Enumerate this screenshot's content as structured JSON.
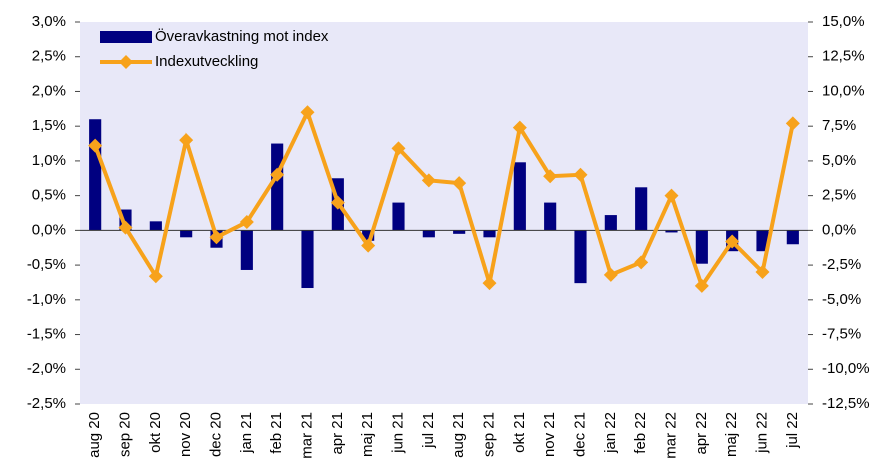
{
  "chart_data": {
    "type": "bar-line",
    "categories": [
      "aug 20",
      "sep 20",
      "okt 20",
      "nov 20",
      "dec 20",
      "jan 21",
      "feb 21",
      "mar 21",
      "apr 21",
      "maj 21",
      "jun 21",
      "jul 21",
      "aug 21",
      "sep 21",
      "okt 21",
      "nov 21",
      "dec 21",
      "jan 22",
      "feb 22",
      "mar 22",
      "apr 22",
      "maj 22",
      "jun 22",
      "jul 22"
    ],
    "series": [
      {
        "name": "Överavkastning mot index",
        "type": "bar",
        "color": "#000080",
        "values": [
          1.6,
          0.3,
          0.13,
          -0.1,
          -0.25,
          -0.57,
          1.25,
          -0.83,
          0.75,
          -0.15,
          0.4,
          -0.1,
          -0.05,
          -0.1,
          0.98,
          0.4,
          -0.76,
          0.22,
          0.62,
          -0.03,
          -0.48,
          -0.3,
          -0.3,
          -0.2
        ]
      },
      {
        "name": "Indexutveckling",
        "type": "line",
        "axis": "y2",
        "color": "#f7a21b",
        "values": [
          6.1,
          0.2,
          -3.3,
          6.5,
          -0.5,
          0.6,
          4.0,
          8.5,
          2.0,
          -1.1,
          5.9,
          3.6,
          3.4,
          -3.8,
          7.4,
          3.9,
          4.0,
          -3.2,
          -2.3,
          2.5,
          -4.0,
          -0.8,
          -3.0,
          7.7
        ]
      }
    ],
    "ylim": [
      -2.5,
      3.0
    ],
    "yticks": [
      {
        "value": -2.5,
        "label": "-2,5%"
      },
      {
        "value": -2.0,
        "label": "-2,0%"
      },
      {
        "value": -1.5,
        "label": "-1,5%"
      },
      {
        "value": -1.0,
        "label": "-1,0%"
      },
      {
        "value": -0.5,
        "label": "-0,5%"
      },
      {
        "value": 0,
        "label": "0,0%"
      },
      {
        "value": 0.5,
        "label": "0,5%"
      },
      {
        "value": 1.0,
        "label": "1,0%"
      },
      {
        "value": 1.5,
        "label": "1,5%"
      },
      {
        "value": 2.0,
        "label": "2,0%"
      },
      {
        "value": 2.5,
        "label": "2,5%"
      },
      {
        "value": 3.0,
        "label": "3,0%"
      }
    ],
    "y2lim": [
      -12.5,
      15.0
    ],
    "y2ticks": [
      {
        "value": -12.5,
        "label": "-12,5%"
      },
      {
        "value": -10.0,
        "label": "-10,0%"
      },
      {
        "value": -7.5,
        "label": "-7,5%"
      },
      {
        "value": -5.0,
        "label": "-5,0%"
      },
      {
        "value": -2.5,
        "label": "-2,5%"
      },
      {
        "value": 0,
        "label": "0,0%"
      },
      {
        "value": 2.5,
        "label": "2,5%"
      },
      {
        "value": 5.0,
        "label": "5,0%"
      },
      {
        "value": 7.5,
        "label": "7,5%"
      },
      {
        "value": 10.0,
        "label": "10,0%"
      },
      {
        "value": 12.5,
        "label": "12,5%"
      },
      {
        "value": 15.0,
        "label": "15,0%"
      }
    ],
    "background": "#e8e8f8",
    "legend": "top-left"
  }
}
